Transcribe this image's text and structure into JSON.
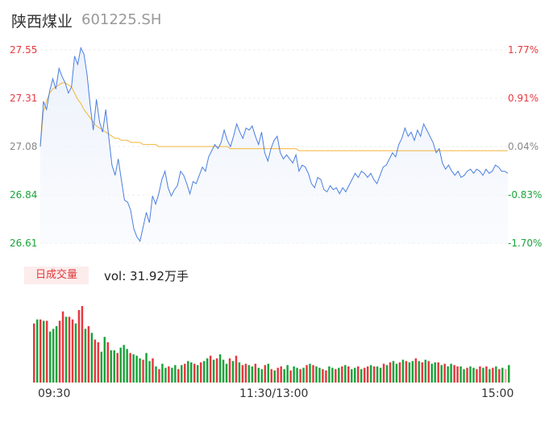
{
  "header": {
    "name": "陕西煤业",
    "code": "601225.SH"
  },
  "colors": {
    "up": "#e8373e",
    "down": "#1aa33a",
    "neutral": "#999999",
    "price_line": "#4a7fe0",
    "avg_line": "#f5b53a"
  },
  "volume_panel": {
    "tag": "日成交量",
    "info": "vol: 31.92万手"
  },
  "chart_data": [
    {
      "type": "line",
      "yticks": [
        "27.55",
        "27.31",
        "27.08",
        "26.84",
        "26.61"
      ],
      "yticks_right": [
        "1.77%",
        "0.91%",
        "0.04%",
        "-0.83%",
        "-1.70%"
      ],
      "ylim": [
        26.61,
        27.55
      ],
      "xticks": [
        "09:30",
        "11:30/13:00",
        "15:00"
      ],
      "series": [
        {
          "role": "price",
          "values": [
            27.08,
            27.3,
            27.26,
            27.35,
            27.41,
            27.36,
            27.46,
            27.42,
            27.39,
            27.34,
            27.37,
            27.52,
            27.48,
            27.56,
            27.53,
            27.43,
            27.28,
            27.16,
            27.31,
            27.2,
            27.15,
            27.26,
            27.12,
            26.99,
            26.94,
            27.02,
            26.92,
            26.82,
            26.81,
            26.77,
            26.68,
            26.64,
            26.62,
            26.69,
            26.76,
            26.71,
            26.84,
            26.8,
            26.85,
            26.92,
            26.96,
            26.88,
            26.84,
            26.87,
            26.89,
            26.96,
            26.94,
            26.9,
            26.85,
            26.91,
            26.9,
            26.94,
            26.98,
            26.96,
            27.03,
            27.06,
            27.09,
            27.07,
            27.1,
            27.16,
            27.11,
            27.08,
            27.13,
            27.19,
            27.15,
            27.12,
            27.17,
            27.16,
            27.18,
            27.13,
            27.09,
            27.15,
            27.05,
            27.01,
            27.07,
            27.11,
            27.13,
            27.05,
            27.02,
            27.04,
            27.02,
            27.0,
            27.04,
            26.96,
            26.99,
            26.98,
            26.95,
            26.9,
            26.88,
            26.93,
            26.92,
            26.87,
            26.86,
            26.89,
            26.87,
            26.88,
            26.85,
            26.88,
            26.86,
            26.89,
            26.92,
            26.95,
            26.93,
            26.96,
            26.95,
            26.93,
            26.95,
            26.92,
            26.9,
            26.94,
            26.98,
            26.99,
            27.02,
            27.05,
            27.03,
            27.09,
            27.12,
            27.17,
            27.13,
            27.15,
            27.11,
            27.16,
            27.13,
            27.19,
            27.16,
            27.13,
            27.1,
            27.05,
            27.07,
            27.0,
            26.97,
            26.99,
            26.96,
            26.94,
            26.96,
            26.93,
            26.94,
            26.96,
            26.97,
            26.95,
            26.97,
            26.96,
            26.94,
            26.97,
            26.95,
            26.96,
            26.99,
            26.98,
            26.96,
            26.96,
            26.95
          ],
          "color": "#4a7fe0"
        },
        {
          "role": "average",
          "values": [
            27.08,
            27.25,
            27.3,
            27.34,
            27.36,
            27.37,
            27.38,
            27.39,
            27.39,
            27.38,
            27.37,
            27.34,
            27.31,
            27.29,
            27.26,
            27.24,
            27.22,
            27.2,
            27.18,
            27.17,
            27.16,
            27.15,
            27.14,
            27.13,
            27.12,
            27.12,
            27.11,
            27.11,
            27.11,
            27.1,
            27.1,
            27.1,
            27.1,
            27.09,
            27.09,
            27.09,
            27.09,
            27.09,
            27.08,
            27.08,
            27.08,
            27.08,
            27.08,
            27.08,
            27.08,
            27.08,
            27.08,
            27.08,
            27.08,
            27.08,
            27.08,
            27.08,
            27.08,
            27.08,
            27.08,
            27.08,
            27.08,
            27.08,
            27.08,
            27.08,
            27.08,
            27.07,
            27.07,
            27.07,
            27.07,
            27.07,
            27.07,
            27.07,
            27.07,
            27.07,
            27.07,
            27.07,
            27.07,
            27.07,
            27.07,
            27.07,
            27.07,
            27.07,
            27.07,
            27.07,
            27.07,
            27.07,
            27.07,
            27.06,
            27.06,
            27.06,
            27.06,
            27.06,
            27.06,
            27.06,
            27.06,
            27.06,
            27.06,
            27.06,
            27.06,
            27.06,
            27.06,
            27.06,
            27.06,
            27.06,
            27.06,
            27.06,
            27.06,
            27.06,
            27.06,
            27.06,
            27.06,
            27.06,
            27.06,
            27.06,
            27.06,
            27.06,
            27.06,
            27.06,
            27.06,
            27.06,
            27.06,
            27.06,
            27.06,
            27.06,
            27.06,
            27.06,
            27.06,
            27.06,
            27.06,
            27.06,
            27.06,
            27.06,
            27.06,
            27.06,
            27.06,
            27.06,
            27.06,
            27.06,
            27.06,
            27.06,
            27.06,
            27.06,
            27.06,
            27.06,
            27.06,
            27.06,
            27.06,
            27.06,
            27.06,
            27.06,
            27.06,
            27.06,
            27.06,
            27.06,
            27.06
          ],
          "color": "#f5b53a"
        }
      ]
    },
    {
      "type": "bar",
      "role": "volume",
      "values": [
        44,
        47,
        47,
        46,
        46,
        38,
        40,
        42,
        46,
        53,
        49,
        49,
        47,
        44,
        54,
        57,
        40,
        42,
        37,
        32,
        30,
        23,
        34,
        30,
        24,
        24,
        22,
        26,
        28,
        25,
        22,
        21,
        20,
        18,
        17,
        22,
        16,
        18,
        12,
        10,
        14,
        11,
        12,
        11,
        13,
        10,
        13,
        14,
        16,
        15,
        14,
        13,
        15,
        16,
        18,
        20,
        17,
        18,
        21,
        17,
        14,
        18,
        16,
        20,
        15,
        13,
        14,
        13,
        12,
        14,
        11,
        10,
        13,
        14,
        10,
        9,
        11,
        12,
        10,
        13,
        9,
        12,
        11,
        10,
        11,
        13,
        14,
        13,
        12,
        11,
        10,
        9,
        12,
        11,
        10,
        11,
        12,
        13,
        12,
        10,
        11,
        12,
        10,
        11,
        12,
        13,
        12,
        12,
        11,
        14,
        13,
        15,
        16,
        14,
        15,
        17,
        16,
        15,
        16,
        18,
        16,
        15,
        17,
        16,
        14,
        15,
        15,
        13,
        14,
        12,
        14,
        13,
        12,
        12,
        10,
        11,
        12,
        11,
        10,
        12,
        11,
        12,
        10,
        11,
        12,
        10,
        11,
        10,
        13
      ],
      "colors": [
        "up",
        "down",
        "up",
        "down",
        "up",
        "down",
        "down",
        "down",
        "up",
        "up",
        "down",
        "up",
        "up",
        "down",
        "up",
        "up",
        "down",
        "up",
        "down",
        "up",
        "up",
        "down",
        "down",
        "up",
        "down",
        "down",
        "up",
        "down",
        "down",
        "down",
        "up",
        "down",
        "down",
        "down",
        "up",
        "down",
        "down",
        "up",
        "down",
        "up",
        "down",
        "down",
        "up",
        "down",
        "down",
        "up",
        "down",
        "up",
        "down",
        "down",
        "up",
        "down",
        "up",
        "down",
        "down",
        "up",
        "down",
        "up",
        "down",
        "down",
        "down",
        "up",
        "down",
        "up",
        "down",
        "up",
        "up",
        "down",
        "down",
        "up",
        "down",
        "down",
        "up",
        "down",
        "up",
        "down",
        "up",
        "up",
        "down",
        "down",
        "up",
        "down",
        "down",
        "up",
        "down",
        "up",
        "down",
        "up",
        "down",
        "down",
        "up",
        "up",
        "down",
        "down",
        "up",
        "down",
        "up",
        "down",
        "up",
        "down",
        "down",
        "up",
        "down",
        "up",
        "up",
        "down",
        "up",
        "down",
        "down",
        "up",
        "down",
        "up",
        "down",
        "down",
        "up",
        "down",
        "up",
        "down",
        "down",
        "up",
        "down",
        "up",
        "down",
        "up",
        "down",
        "down",
        "up",
        "down",
        "up",
        "down",
        "down",
        "up",
        "up",
        "down",
        "down",
        "up",
        "down",
        "down",
        "up",
        "up",
        "down",
        "up",
        "down",
        "up",
        "down",
        "up",
        "down",
        "neutral"
      ],
      "ylim": [
        0,
        60
      ]
    }
  ]
}
